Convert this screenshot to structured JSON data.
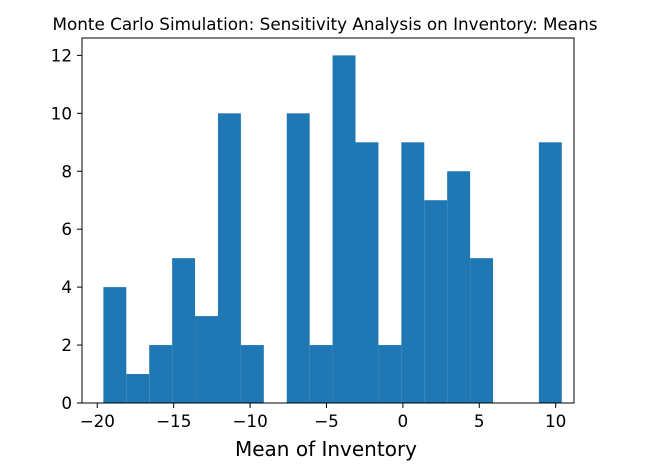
{
  "chart_data": {
    "type": "bar",
    "title": "Monte Carlo Simulation: Sensitivity Analysis on Inventory: Means",
    "xlabel": "Mean of Inventory",
    "ylabel": "",
    "xlim": [
      -21.0,
      11.2
    ],
    "ylim": [
      0,
      12.6
    ],
    "xticks": [
      -20,
      -15,
      -10,
      -5,
      0,
      5,
      10
    ],
    "xtick_labels": [
      "−20",
      "−15",
      "−10",
      "−5",
      "0",
      "5",
      "10"
    ],
    "yticks": [
      0,
      2,
      4,
      6,
      8,
      10,
      12
    ],
    "ytick_labels": [
      "0",
      "2",
      "4",
      "6",
      "8",
      "10",
      "12"
    ],
    "bin_edges": [
      -19.6,
      -18.1,
      -16.6,
      -15.1,
      -13.6,
      -12.1,
      -10.6,
      -9.1,
      -7.6,
      -6.1,
      -4.6,
      -3.1,
      -1.6,
      -0.1,
      1.4,
      2.9,
      4.4,
      5.9,
      7.4,
      8.9,
      10.4
    ],
    "values": [
      4,
      1,
      2,
      5,
      3,
      10,
      2,
      0,
      10,
      2,
      12,
      9,
      2,
      9,
      7,
      8,
      5,
      0,
      0,
      9
    ],
    "bar_color": "#1f77b4",
    "grid": false
  }
}
